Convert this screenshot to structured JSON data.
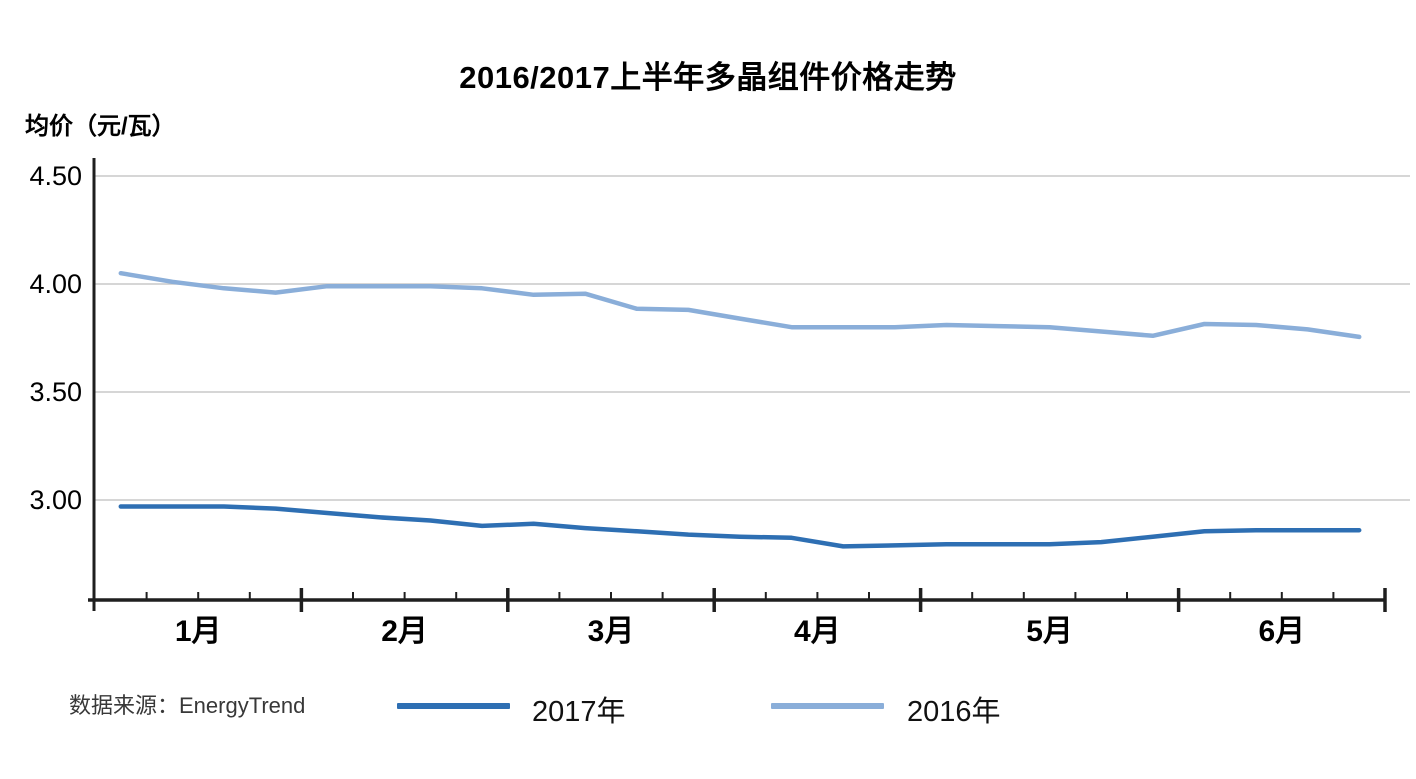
{
  "chart_data": {
    "type": "line",
    "title": "2016/2017上半年多晶组件价格走势",
    "ylabel": "均价（元/瓦）",
    "xlabel": "",
    "source": "数据来源：EnergyTrend",
    "grid": true,
    "grid_color": "#c9c9c9",
    "axis_color": "#1f1f1f",
    "legend_position": "bottom",
    "ylim": [
      2.54,
      4.58
    ],
    "yticks": [
      {
        "label": "4.50",
        "value": 4.5
      },
      {
        "label": "4.00",
        "value": 4.0
      },
      {
        "label": "3.50",
        "value": 3.5
      },
      {
        "label": "3.00",
        "value": 3.0
      }
    ],
    "x_unit": "week",
    "months": [
      {
        "label": "1月",
        "weeks": 4
      },
      {
        "label": "2月",
        "weeks": 4
      },
      {
        "label": "3月",
        "weeks": 4
      },
      {
        "label": "4月",
        "weeks": 4
      },
      {
        "label": "5月",
        "weeks": 5
      },
      {
        "label": "6月",
        "weeks": 4
      }
    ],
    "series": [
      {
        "name": "2017年",
        "color": "#2e6fb3",
        "values": [
          2.97,
          2.97,
          2.97,
          2.96,
          2.94,
          2.92,
          2.905,
          2.88,
          2.89,
          2.87,
          2.855,
          2.84,
          2.83,
          2.825,
          2.785,
          2.79,
          2.795,
          2.795,
          2.795,
          2.805,
          2.83,
          2.855,
          2.86,
          2.86,
          2.86
        ]
      },
      {
        "name": "2016年",
        "color": "#8aaed9",
        "values": [
          4.05,
          4.01,
          3.98,
          3.96,
          3.99,
          3.99,
          3.99,
          3.98,
          3.95,
          3.955,
          3.885,
          3.88,
          3.84,
          3.8,
          3.8,
          3.8,
          3.81,
          3.805,
          3.8,
          3.78,
          3.76,
          3.815,
          3.81,
          3.79,
          3.755
        ]
      }
    ]
  }
}
